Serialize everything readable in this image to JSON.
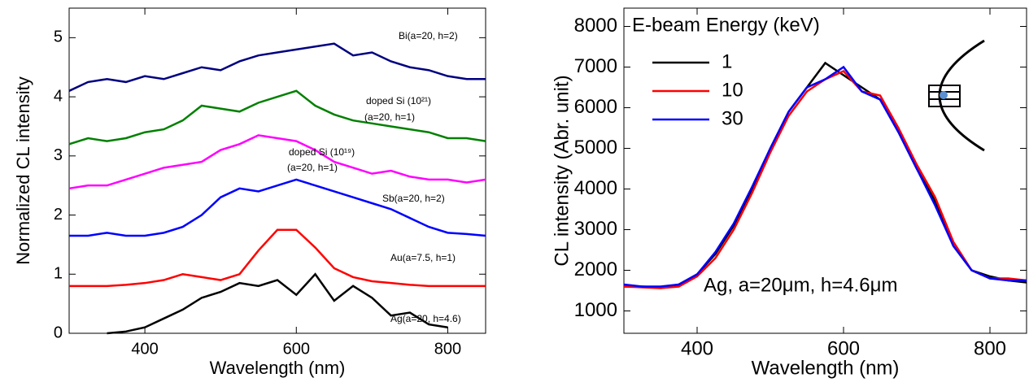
{
  "chart_data": [
    {
      "type": "line",
      "xlabel": "Wavelength (nm)",
      "ylabel": "Normalized CL intensity",
      "x": [
        300,
        325,
        350,
        375,
        400,
        425,
        450,
        475,
        500,
        525,
        550,
        575,
        600,
        625,
        650,
        675,
        700,
        725,
        750,
        775,
        800,
        825,
        850
      ],
      "xlim": [
        300,
        850
      ],
      "ylim": [
        0,
        5.5
      ],
      "xticks": [
        400,
        600,
        800
      ],
      "yticks": [
        0,
        1,
        2,
        3,
        4,
        5
      ],
      "series": [
        {
          "color": "#000080",
          "values": [
            4.1,
            4.25,
            4.3,
            4.25,
            4.35,
            4.3,
            4.4,
            4.5,
            4.45,
            4.6,
            4.7,
            4.75,
            4.8,
            4.85,
            4.9,
            4.7,
            4.75,
            4.6,
            4.5,
            4.45,
            4.35,
            4.3,
            4.3
          ]
        },
        {
          "color": "#008000",
          "values": [
            3.2,
            3.3,
            3.25,
            3.3,
            3.4,
            3.45,
            3.6,
            3.85,
            3.8,
            3.75,
            3.9,
            4.0,
            4.1,
            3.85,
            3.7,
            3.6,
            3.55,
            3.5,
            3.45,
            3.4,
            3.3,
            3.3,
            3.25
          ]
        },
        {
          "color": "#ff00ff",
          "values": [
            2.45,
            2.5,
            2.5,
            2.6,
            2.7,
            2.8,
            2.85,
            2.9,
            3.1,
            3.2,
            3.35,
            3.3,
            3.25,
            3.1,
            2.9,
            2.8,
            2.7,
            2.75,
            2.65,
            2.6,
            2.6,
            2.55,
            2.6
          ]
        },
        {
          "color": "#0000ff",
          "values": [
            1.65,
            1.65,
            1.7,
            1.65,
            1.65,
            1.7,
            1.8,
            2.0,
            2.3,
            2.45,
            2.4,
            2.5,
            2.6,
            2.5,
            2.4,
            2.3,
            2.2,
            2.1,
            1.95,
            1.8,
            1.7,
            1.68,
            1.65
          ]
        },
        {
          "color": "#ff0000",
          "values": [
            0.8,
            0.8,
            0.8,
            0.82,
            0.85,
            0.9,
            1.0,
            0.95,
            0.9,
            1.0,
            1.4,
            1.75,
            1.75,
            1.45,
            1.1,
            0.95,
            0.88,
            0.85,
            0.82,
            0.8,
            0.8,
            0.8,
            0.8
          ]
        },
        {
          "color": "#000000",
          "values": [
            null,
            null,
            0.0,
            0.03,
            0.1,
            0.25,
            0.4,
            0.6,
            0.7,
            0.85,
            0.8,
            0.9,
            0.65,
            1.0,
            0.55,
            0.8,
            0.6,
            0.3,
            0.35,
            0.15,
            0.1,
            null,
            null
          ]
        }
      ],
      "annotations": [
        "Bi(a=20, h=2)",
        "doped Si (10²¹)",
        "(a=20, h=1)",
        "doped Si (10¹⁹)",
        "(a=20, h=1)",
        "Sb(a=20, h=2)",
        "Au(a=7.5, h=1)",
        "Ag(a=20, h=4.6)"
      ]
    },
    {
      "type": "line",
      "xlabel": "Wavelength (nm)",
      "ylabel": "CL intensity (Abr. unit)",
      "x": [
        300,
        325,
        350,
        375,
        400,
        425,
        450,
        475,
        500,
        525,
        550,
        575,
        600,
        625,
        650,
        675,
        700,
        725,
        750,
        775,
        800,
        825,
        850
      ],
      "xlim": [
        300,
        850
      ],
      "ylim": [
        450,
        8450
      ],
      "xticks": [
        400,
        600,
        800
      ],
      "yticks": [
        1000,
        2000,
        3000,
        4000,
        5000,
        6000,
        7000,
        8000
      ],
      "legend_title": "E-beam Energy (keV)",
      "legend": "upper left",
      "series": [
        {
          "name": "1",
          "color": "#000000",
          "values": [
            1600,
            1600,
            1580,
            1650,
            1900,
            2400,
            3100,
            4000,
            5000,
            5900,
            6500,
            7100,
            6800,
            6500,
            6200,
            5400,
            4500,
            3700,
            2600,
            2000,
            1850,
            1750,
            1700
          ]
        },
        {
          "name": "10",
          "color": "#ff0000",
          "values": [
            1600,
            1580,
            1560,
            1600,
            1850,
            2300,
            3000,
            3900,
            4900,
            5800,
            6400,
            6700,
            6900,
            6400,
            6300,
            5500,
            4600,
            3800,
            2700,
            2000,
            1800,
            1800,
            1750
          ]
        },
        {
          "name": "30",
          "color": "#0000ff",
          "values": [
            1650,
            1600,
            1600,
            1650,
            1900,
            2450,
            3150,
            4050,
            5000,
            5900,
            6500,
            6700,
            7000,
            6400,
            6200,
            5400,
            4500,
            3600,
            2600,
            2000,
            1800,
            1750,
            1750
          ]
        }
      ],
      "annotations": [
        "Ag, a=20μm, h=4.6μm"
      ]
    }
  ]
}
